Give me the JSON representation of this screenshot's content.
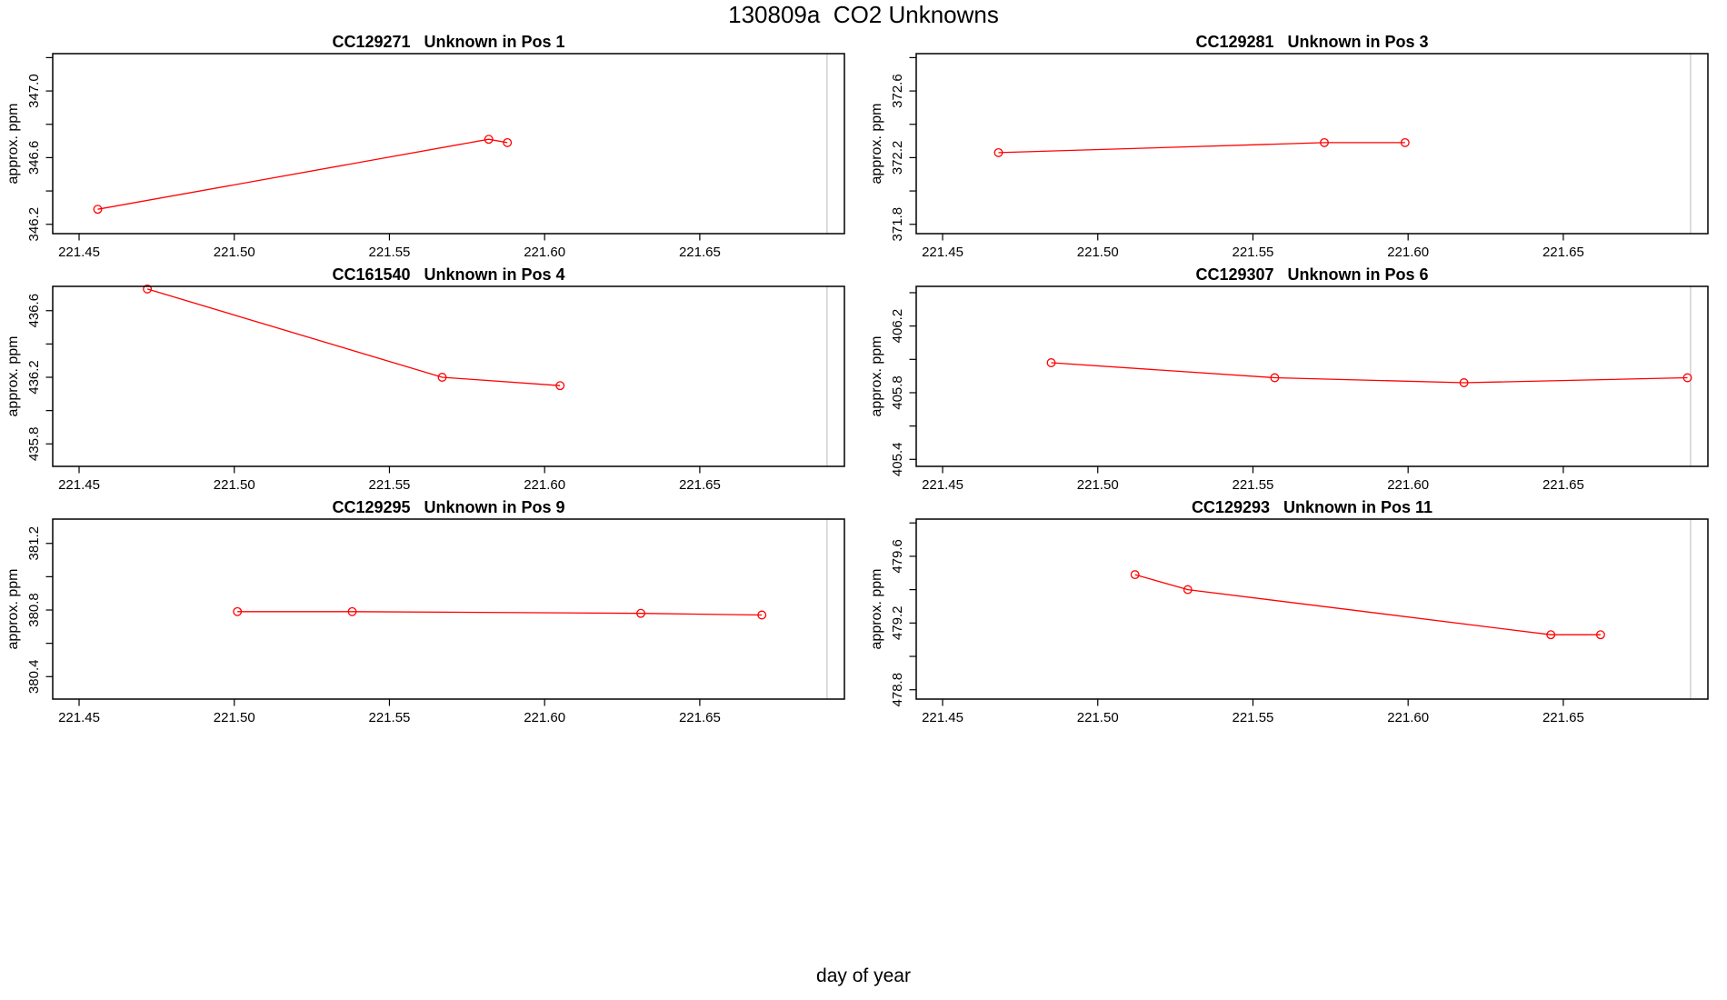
{
  "figure": {
    "title": "130809a  CO2 Unknowns",
    "xlabel": "day of year",
    "series_color": "#ff0000",
    "ref_line_color": "#d0d0d0",
    "box_color": "#000000",
    "x_ticks": [
      {
        "v": 221.45,
        "label": "221.45"
      },
      {
        "v": 221.5,
        "label": "221.50"
      },
      {
        "v": 221.55,
        "label": "221.55"
      },
      {
        "v": 221.6,
        "label": "221.60"
      },
      {
        "v": 221.65,
        "label": "221.65"
      }
    ],
    "ref_line_x": 221.691
  },
  "chart_data": [
    {
      "type": "line",
      "title": "CC129271   Unknown in Pos 1",
      "sample_id": "CC129271",
      "position": "Pos 1",
      "ylabel": "approx. ppm",
      "xlim": [
        221.4415,
        221.6966
      ],
      "ylim": [
        346.144,
        347.224
      ],
      "x": [
        221.456,
        221.582,
        221.588
      ],
      "y": [
        346.29,
        346.71,
        346.69
      ],
      "y_ticks": [
        {
          "v": 346.2,
          "label": "346.2"
        },
        {
          "v": 346.4,
          "label": ""
        },
        {
          "v": 346.6,
          "label": "346.6"
        },
        {
          "v": 346.8,
          "label": ""
        },
        {
          "v": 347.0,
          "label": "347.0"
        },
        {
          "v": 347.2,
          "label": ""
        }
      ]
    },
    {
      "type": "line",
      "title": "CC129281   Unknown in Pos 3",
      "sample_id": "CC129281",
      "position": "Pos 3",
      "ylabel": "approx. ppm",
      "xlim": [
        221.4415,
        221.6966
      ],
      "ylim": [
        371.744,
        372.824
      ],
      "x": [
        221.468,
        221.573,
        221.599
      ],
      "y": [
        372.23,
        372.29,
        372.29
      ],
      "y_ticks": [
        {
          "v": 371.8,
          "label": "371.8"
        },
        {
          "v": 372.0,
          "label": ""
        },
        {
          "v": 372.2,
          "label": "372.2"
        },
        {
          "v": 372.4,
          "label": ""
        },
        {
          "v": 372.6,
          "label": "372.6"
        },
        {
          "v": 372.8,
          "label": ""
        }
      ]
    },
    {
      "type": "line",
      "title": "CC161540   Unknown in Pos 4",
      "sample_id": "CC161540",
      "position": "Pos 4",
      "ylabel": "approx. ppm",
      "xlim": [
        221.4415,
        221.6966
      ],
      "ylim": [
        435.665,
        436.746
      ],
      "x": [
        221.472,
        221.567,
        221.605
      ],
      "y": [
        436.73,
        436.2,
        436.15
      ],
      "y_ticks": [
        {
          "v": 435.8,
          "label": "435.8"
        },
        {
          "v": 436.0,
          "label": ""
        },
        {
          "v": 436.2,
          "label": "436.2"
        },
        {
          "v": 436.4,
          "label": ""
        },
        {
          "v": 436.6,
          "label": "436.6"
        }
      ]
    },
    {
      "type": "line",
      "title": "CC129307   Unknown in Pos 6",
      "sample_id": "CC129307",
      "position": "Pos 6",
      "ylabel": "approx. ppm",
      "xlim": [
        221.4415,
        221.6966
      ],
      "ylim": [
        405.358,
        406.438
      ],
      "x": [
        221.485,
        221.557,
        221.618,
        221.69
      ],
      "y": [
        405.98,
        405.89,
        405.86,
        405.89
      ],
      "y_ticks": [
        {
          "v": 405.4,
          "label": "405.4"
        },
        {
          "v": 405.6,
          "label": ""
        },
        {
          "v": 405.8,
          "label": "405.8"
        },
        {
          "v": 406.0,
          "label": ""
        },
        {
          "v": 406.2,
          "label": "406.2"
        },
        {
          "v": 406.4,
          "label": ""
        }
      ]
    },
    {
      "type": "line",
      "title": "CC129295   Unknown in Pos 9",
      "sample_id": "CC129295",
      "position": "Pos 9",
      "ylabel": "approx. ppm",
      "xlim": [
        221.4415,
        221.6966
      ],
      "ylim": [
        380.265,
        381.346
      ],
      "x": [
        221.501,
        221.538,
        221.631,
        221.67
      ],
      "y": [
        380.79,
        380.79,
        380.78,
        380.77
      ],
      "y_ticks": [
        {
          "v": 380.4,
          "label": "380.4"
        },
        {
          "v": 380.6,
          "label": ""
        },
        {
          "v": 380.8,
          "label": "380.8"
        },
        {
          "v": 381.0,
          "label": ""
        },
        {
          "v": 381.2,
          "label": "381.2"
        }
      ]
    },
    {
      "type": "line",
      "title": "CC129293   Unknown in Pos 11",
      "sample_id": "CC129293",
      "position": "Pos 11",
      "ylabel": "approx. ppm",
      "xlim": [
        221.4415,
        221.6966
      ],
      "ylim": [
        478.744,
        479.823
      ],
      "x": [
        221.512,
        221.529,
        221.646,
        221.662
      ],
      "y": [
        479.49,
        479.4,
        479.13,
        479.13
      ],
      "y_ticks": [
        {
          "v": 478.8,
          "label": "478.8"
        },
        {
          "v": 479.0,
          "label": ""
        },
        {
          "v": 479.2,
          "label": "479.2"
        },
        {
          "v": 479.4,
          "label": ""
        },
        {
          "v": 479.6,
          "label": "479.6"
        },
        {
          "v": 479.8,
          "label": ""
        }
      ]
    }
  ]
}
